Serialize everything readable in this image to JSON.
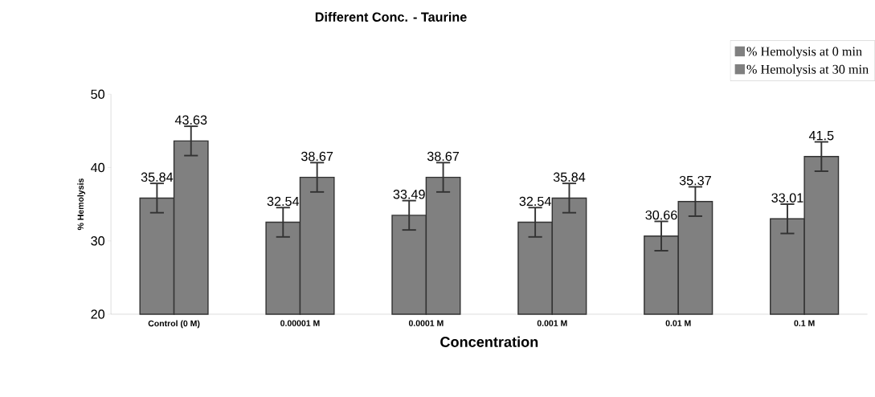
{
  "chart_data": {
    "type": "bar",
    "title": "Different Conc. - Taurine",
    "xlabel": "Concentration",
    "ylabel": "% Hemolysis",
    "categories": [
      "Control (0 M)",
      "0.00001 M",
      "0.0001 M",
      "0.001 M",
      "0.01 M",
      "0.1 M"
    ],
    "series": [
      {
        "name": "% Hemolysis at 0 min",
        "color": "#808080",
        "values": [
          35.84,
          32.54,
          33.49,
          32.54,
          30.66,
          33.01
        ],
        "errors": [
          2,
          2,
          2,
          2,
          2,
          2
        ]
      },
      {
        "name": "% Hemolysis at 30 min",
        "color": "#808080",
        "values": [
          43.63,
          38.67,
          38.67,
          35.84,
          35.37,
          41.5
        ],
        "errors": [
          2,
          2,
          2,
          2,
          2,
          2
        ]
      }
    ],
    "ylim": [
      20,
      50
    ],
    "yticks": [
      20,
      30,
      40,
      50
    ],
    "data_labels": true,
    "legend": "top right",
    "grid": false
  }
}
